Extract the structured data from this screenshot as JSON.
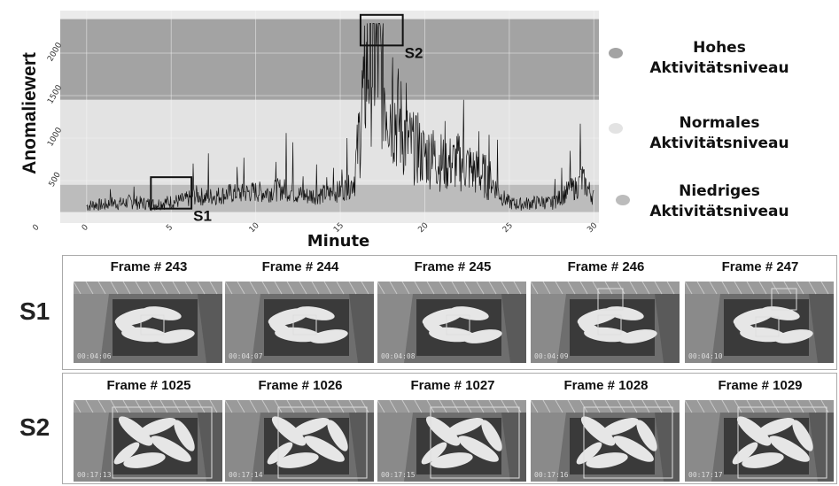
{
  "chart_data": {
    "type": "line",
    "xlabel": "Minute",
    "ylabel": "Anomaliewert",
    "xlim": [
      -2.4,
      30.3
    ],
    "ylim": [
      0,
      2500
    ],
    "xticks": [
      0,
      5,
      10,
      15,
      20,
      25,
      30
    ],
    "yticks": [
      500,
      1000,
      1500,
      2000
    ],
    "bands": [
      {
        "name": "Hohes Aktivitätsniveau",
        "ymin": 1450,
        "ymax": 2400,
        "color": "#a3a3a3"
      },
      {
        "name": "Normales Aktivitätsniveau",
        "ymin": 450,
        "ymax": 1450,
        "color": "#e3e3e3"
      },
      {
        "name": "Niedriges Aktivitätsniveau",
        "ymin": 130,
        "ymax": 450,
        "color": "#bcbcbc"
      }
    ],
    "anchors": [
      [
        0,
        200
      ],
      [
        0.5,
        220
      ],
      [
        1,
        210
      ],
      [
        1.5,
        240
      ],
      [
        2,
        230
      ],
      [
        2.5,
        250
      ],
      [
        3,
        240
      ],
      [
        3.5,
        230
      ],
      [
        4,
        220
      ],
      [
        4.5,
        240
      ],
      [
        5,
        250
      ],
      [
        5.5,
        260
      ],
      [
        6,
        280
      ],
      [
        6.5,
        330
      ],
      [
        7,
        300
      ],
      [
        7.5,
        320
      ],
      [
        8,
        330
      ],
      [
        8.5,
        350
      ],
      [
        9,
        340
      ],
      [
        9.5,
        360
      ],
      [
        10,
        370
      ],
      [
        10.5,
        360
      ],
      [
        11,
        380
      ],
      [
        11.5,
        400
      ],
      [
        12,
        380
      ],
      [
        12.5,
        340
      ],
      [
        13,
        320
      ],
      [
        13.5,
        330
      ],
      [
        14,
        340
      ],
      [
        14.5,
        350
      ],
      [
        15,
        380
      ],
      [
        15.5,
        420
      ],
      [
        15.8,
        500
      ],
      [
        16,
        800
      ],
      [
        16.3,
        1400
      ],
      [
        16.6,
        1900
      ],
      [
        17,
        2050
      ],
      [
        17.4,
        1800
      ],
      [
        17.8,
        1500
      ],
      [
        18.2,
        1300
      ],
      [
        18.6,
        1150
      ],
      [
        19,
        950
      ],
      [
        19.5,
        850
      ],
      [
        20,
        800
      ],
      [
        20.5,
        780
      ],
      [
        21,
        720
      ],
      [
        21.5,
        700
      ],
      [
        22,
        720
      ],
      [
        22.5,
        680
      ],
      [
        23,
        600
      ],
      [
        23.5,
        560
      ],
      [
        24,
        480
      ],
      [
        24.5,
        320
      ],
      [
        25,
        240
      ],
      [
        25.5,
        220
      ],
      [
        26,
        230
      ],
      [
        26.5,
        240
      ],
      [
        27,
        250
      ],
      [
        27.5,
        230
      ],
      [
        28,
        300
      ],
      [
        28.5,
        380
      ],
      [
        29,
        420
      ],
      [
        29.3,
        520
      ],
      [
        29.6,
        420
      ],
      [
        30,
        300
      ]
    ],
    "spikes": [
      [
        1.4,
        400
      ],
      [
        2.8,
        430
      ],
      [
        6.3,
        700
      ],
      [
        7.2,
        820
      ],
      [
        8.9,
        660
      ],
      [
        9.3,
        770
      ],
      [
        11.2,
        720
      ],
      [
        11.8,
        1060
      ],
      [
        12.2,
        950
      ],
      [
        12.8,
        550
      ],
      [
        13.6,
        690
      ],
      [
        14.2,
        540
      ],
      [
        14.6,
        650
      ],
      [
        15.1,
        630
      ],
      [
        15.4,
        1000
      ],
      [
        16.4,
        1700
      ],
      [
        17.2,
        2300
      ],
      [
        17.5,
        2200
      ],
      [
        18.1,
        1950
      ],
      [
        18.9,
        1650
      ],
      [
        19.6,
        1300
      ],
      [
        20.4,
        1050
      ],
      [
        21.2,
        1200
      ],
      [
        22.3,
        1450
      ],
      [
        23.2,
        1080
      ],
      [
        23.8,
        1040
      ],
      [
        24.3,
        980
      ],
      [
        27.7,
        520
      ],
      [
        28.1,
        650
      ],
      [
        28.6,
        850
      ],
      [
        29.2,
        1170
      ]
    ],
    "annotations": [
      {
        "label": "S1",
        "x0": 3.8,
        "x1": 6.2,
        "y0": 170,
        "y1": 540
      },
      {
        "label": "S2",
        "x0": 16.2,
        "x1": 18.7,
        "y0": 2090,
        "y1": 2450
      }
    ]
  },
  "legend": [
    {
      "label_line1": "Hohes",
      "label_line2": "Aktivitätsniveau",
      "color": "#a3a3a3"
    },
    {
      "label_line1": "Normales",
      "label_line2": "Aktivitätsniveau",
      "color": "#e3e3e3"
    },
    {
      "label_line1": "Niedriges",
      "label_line2": "Aktivitätsniveau",
      "color": "#bcbcbc"
    }
  ],
  "rows": [
    {
      "label": "S1",
      "frames": [
        {
          "title": "Frame # 243",
          "time": "00:04:06"
        },
        {
          "title": "Frame # 244",
          "time": "00:04:07"
        },
        {
          "title": "Frame # 245",
          "time": "00:04:08"
        },
        {
          "title": "Frame # 246",
          "time": "00:04:09"
        },
        {
          "title": "Frame # 247",
          "time": "00:04:10"
        }
      ]
    },
    {
      "label": "S2",
      "frames": [
        {
          "title": "Frame # 1025",
          "time": "00:17:13"
        },
        {
          "title": "Frame # 1026",
          "time": "00:17:14"
        },
        {
          "title": "Frame # 1027",
          "time": "00:17:15"
        },
        {
          "title": "Frame # 1028",
          "time": "00:17:16"
        },
        {
          "title": "Frame # 1029",
          "time": "00:17:17"
        }
      ]
    }
  ]
}
